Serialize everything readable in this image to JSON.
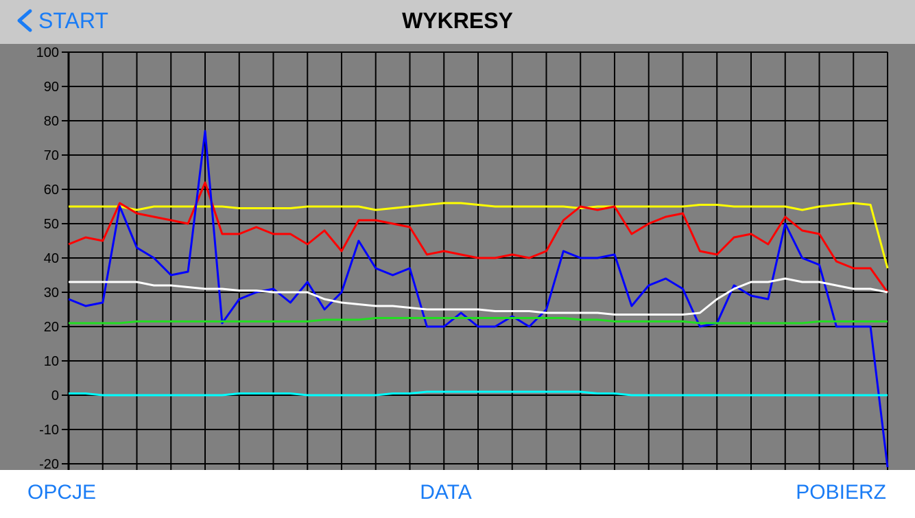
{
  "header": {
    "back": "START",
    "title": "WYKRESY"
  },
  "chart_data": {
    "type": "line",
    "ylim": [
      -20,
      100
    ],
    "yticks": [
      -20,
      -10,
      0,
      10,
      20,
      30,
      40,
      50,
      60,
      70,
      80,
      90,
      100
    ],
    "grid": true,
    "series": [
      {
        "color": "#ffff00",
        "values": [
          55,
          55,
          55,
          55,
          54,
          55,
          55,
          55,
          55,
          55,
          54.5,
          54.5,
          54.5,
          54.5,
          55,
          55,
          55,
          55,
          54,
          54.5,
          55,
          55.5,
          56,
          56,
          55.5,
          55,
          55,
          55,
          55,
          55,
          54.5,
          55,
          55,
          55,
          55,
          55,
          55,
          55.5,
          55.5,
          55,
          55,
          55,
          55,
          54,
          55,
          55.5,
          56,
          55.5,
          37
        ]
      },
      {
        "color": "#ff0000",
        "values": [
          44,
          46,
          45,
          56,
          53,
          52,
          51,
          50,
          62,
          47,
          47,
          49,
          47,
          47,
          44,
          48,
          42,
          51,
          51,
          50,
          49,
          41,
          42,
          41,
          40,
          40,
          41,
          40,
          42,
          51,
          55,
          54,
          55,
          47,
          50,
          52,
          53,
          42,
          41,
          46,
          47,
          44,
          52,
          48,
          47,
          39,
          37,
          37,
          30
        ]
      },
      {
        "color": "#0000ff",
        "values": [
          28,
          26,
          27,
          55,
          43,
          40,
          35,
          36,
          77,
          21,
          28,
          30,
          31,
          27,
          33,
          25,
          30,
          45,
          37,
          35,
          37,
          20,
          20,
          24,
          20,
          20,
          23,
          20,
          25,
          42,
          40,
          40,
          41,
          26,
          32,
          34,
          31,
          20,
          21,
          32,
          29,
          28,
          50,
          40,
          38,
          20,
          20,
          20,
          -21
        ]
      },
      {
        "color": "#ffffff",
        "values": [
          33,
          33,
          33,
          33,
          33,
          32,
          32,
          31.5,
          31,
          31,
          30.5,
          30.5,
          30,
          30,
          30,
          28,
          27,
          26.5,
          26,
          26,
          25.5,
          25,
          25,
          25,
          25,
          24.5,
          24.5,
          24.5,
          24,
          24,
          24,
          24,
          23.5,
          23.5,
          23.5,
          23.5,
          23.5,
          24,
          28,
          31,
          33,
          33,
          34,
          33,
          33,
          32,
          31,
          31,
          30
        ]
      },
      {
        "color": "#22dd22",
        "values": [
          21,
          21,
          21,
          21,
          21.5,
          21.5,
          21.5,
          21.5,
          21.5,
          21.5,
          21.5,
          21.5,
          21.5,
          21.5,
          21.5,
          22,
          22,
          22,
          22.5,
          22.5,
          22.5,
          22.5,
          22.5,
          22.5,
          22.5,
          22.5,
          22.5,
          22.5,
          22.5,
          22.5,
          22,
          22,
          21.5,
          21.5,
          21.5,
          21.5,
          21.5,
          21,
          21,
          21,
          21,
          21,
          21,
          21,
          21.5,
          21.5,
          21.5,
          21.5,
          21.5
        ]
      },
      {
        "color": "#00ffff",
        "values": [
          0.5,
          0.5,
          0,
          0,
          0,
          0,
          0,
          0,
          0,
          0,
          0.5,
          0.5,
          0.5,
          0.5,
          0,
          0,
          0,
          0,
          0,
          0.5,
          0.5,
          1,
          1,
          1,
          1,
          1,
          1,
          1,
          1,
          1,
          1,
          0.5,
          0.5,
          0,
          0,
          0,
          0,
          0,
          0,
          0,
          0,
          0,
          0,
          0,
          0,
          0,
          0,
          0,
          0
        ]
      }
    ]
  },
  "footer": {
    "left": "OPCJE",
    "center": "DATA",
    "right": "POBIERZ"
  }
}
